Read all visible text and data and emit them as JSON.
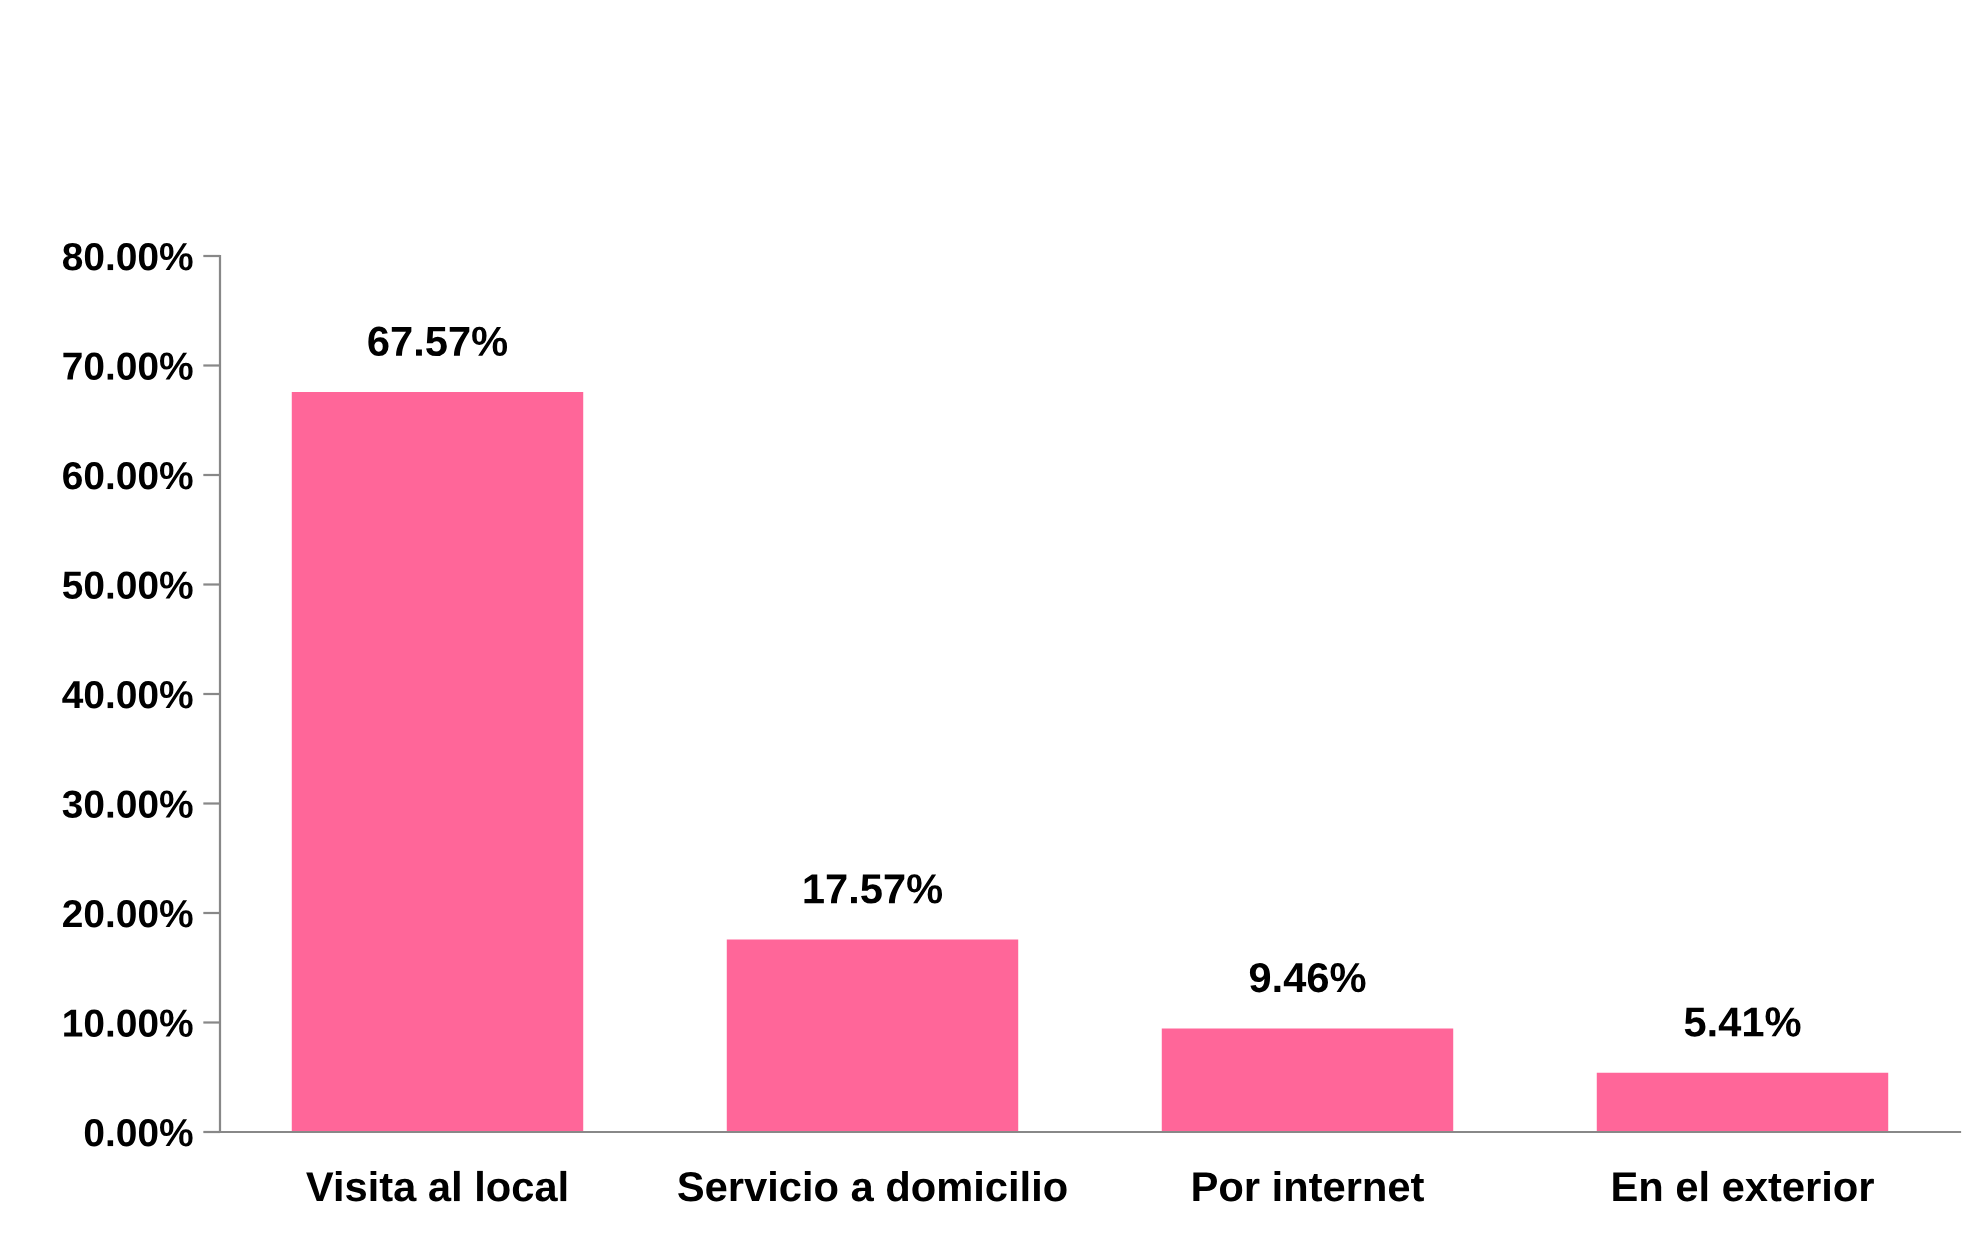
{
  "chart_data": {
    "type": "bar",
    "categories": [
      "Visita al local",
      "Servicio a domicilio",
      "Por internet",
      "En el exterior"
    ],
    "values": [
      67.57,
      17.57,
      9.46,
      5.41
    ],
    "color": "#ff6699",
    "value_labels": [
      "67.57%",
      "17.57%",
      "9.46%",
      "5.41%"
    ],
    "ylim": [
      0,
      80
    ],
    "yticks": [
      {
        "value": 0,
        "label": "0.00%"
      },
      {
        "value": 10,
        "label": "10.00%"
      },
      {
        "value": 20,
        "label": "20.00%"
      },
      {
        "value": 30,
        "label": "30.00%"
      },
      {
        "value": 40,
        "label": "40.00%"
      },
      {
        "value": 50,
        "label": "50.00%"
      },
      {
        "value": 60,
        "label": "60.00%"
      },
      {
        "value": 70,
        "label": "70.00%"
      },
      {
        "value": 80,
        "label": "80.00%"
      }
    ],
    "grid": false,
    "legend": false
  }
}
